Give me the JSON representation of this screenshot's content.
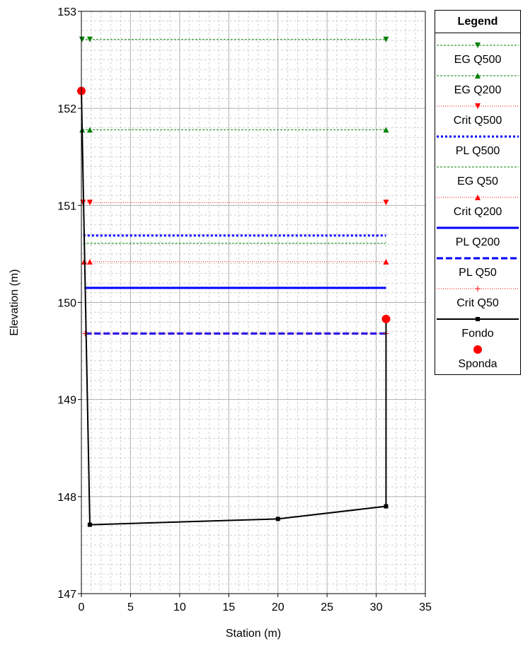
{
  "chart_data": {
    "type": "line",
    "xlabel": "Station (m)",
    "ylabel": "Elevation (m)",
    "xlim": [
      0,
      35
    ],
    "ylim": [
      147,
      153
    ],
    "xticks": [
      "0",
      "5",
      "10",
      "15",
      "20",
      "25",
      "30",
      "35"
    ],
    "yticks": [
      "147",
      "148",
      "149",
      "150",
      "151",
      "152",
      "153"
    ],
    "grid": true,
    "legend_position": "right",
    "legend_title": "Legend",
    "series": [
      {
        "name": "EG Q500",
        "color": "#008000",
        "style": "dashed-thin",
        "marker": "triangle-down",
        "x": [
          0.06,
          0.86,
          31.0
        ],
        "y": [
          152.71,
          152.71,
          152.71
        ]
      },
      {
        "name": "EG Q200",
        "color": "#008000",
        "style": "dashed-thin",
        "marker": "triangle-up",
        "x": [
          0.08,
          0.86,
          31.0
        ],
        "y": [
          151.78,
          151.78,
          151.78
        ]
      },
      {
        "name": "Crit Q500",
        "color": "#ff0000",
        "style": "dotted-thin",
        "marker": "triangle-down",
        "x": [
          0.16,
          0.86,
          31.0
        ],
        "y": [
          151.03,
          151.03,
          151.03
        ]
      },
      {
        "name": "PL Q500",
        "color": "#0000ff",
        "style": "dotted-thick",
        "marker": "none",
        "x": [
          0.2,
          31.0
        ],
        "y": [
          150.69,
          150.69
        ]
      },
      {
        "name": "EG Q50",
        "color": "#008000",
        "style": "dashed-thin",
        "marker": "none",
        "x": [
          0.2,
          31.0
        ],
        "y": [
          150.61,
          150.61
        ]
      },
      {
        "name": "Crit Q200",
        "color": "#ff0000",
        "style": "dotted-thin",
        "marker": "triangle-up",
        "x": [
          0.28,
          0.86,
          31.0
        ],
        "y": [
          150.42,
          150.42,
          150.42
        ]
      },
      {
        "name": "PL Q200",
        "color": "#0000ff",
        "style": "solid-thick",
        "marker": "none",
        "x": [
          0.3,
          31.0
        ],
        "y": [
          150.15,
          150.15
        ]
      },
      {
        "name": "PL Q50",
        "color": "#0000ff",
        "style": "dashed-thick",
        "marker": "none",
        "x": [
          0.38,
          31.0
        ],
        "y": [
          149.68,
          149.68
        ]
      },
      {
        "name": "Crit Q50",
        "color": "#ff0000",
        "style": "dotted-thin",
        "marker": "plus",
        "x": [
          0.38,
          31.0
        ],
        "y": [
          149.68,
          149.68
        ]
      },
      {
        "name": "Fondo",
        "color": "#000000",
        "style": "solid",
        "marker": "square",
        "x": [
          0.0,
          0.86,
          20.0,
          31.0,
          31.0
        ],
        "y": [
          152.18,
          147.71,
          147.77,
          147.9,
          149.83
        ]
      },
      {
        "name": "Sponda",
        "color": "#ff0000",
        "style": "none",
        "marker": "circle",
        "x": [
          0.0,
          31.0
        ],
        "y": [
          152.18,
          149.83
        ]
      }
    ]
  }
}
